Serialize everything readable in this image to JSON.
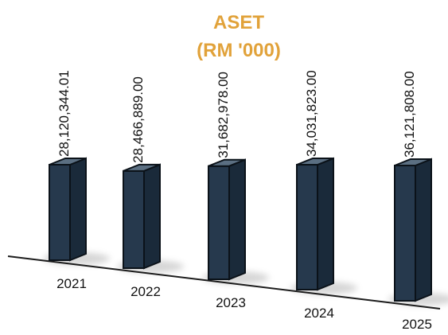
{
  "chart_data": {
    "type": "bar",
    "title": "ASET",
    "subtitle": "(RM '000)",
    "categories": [
      "2021",
      "2022",
      "2023",
      "2024",
      "2025"
    ],
    "values": [
      28120344.01,
      28466889.0,
      31682978.0,
      34031823.0,
      36121808.0
    ],
    "value_labels": [
      "28,120,344.01",
      "28,466,889.00",
      "31,682,978.00",
      "34,031,823.00",
      "36,121,808.00"
    ],
    "xlabel": "",
    "ylabel": "",
    "grid": false,
    "legend": "none"
  },
  "colors": {
    "title": "#e1a23a",
    "bar_front": "#26394d",
    "bar_side": "#1a2a3a",
    "bar_top": "#5b6f82",
    "bar_edge": "#0b1219",
    "baseline": "#1d1d1d",
    "text": "#111111"
  }
}
